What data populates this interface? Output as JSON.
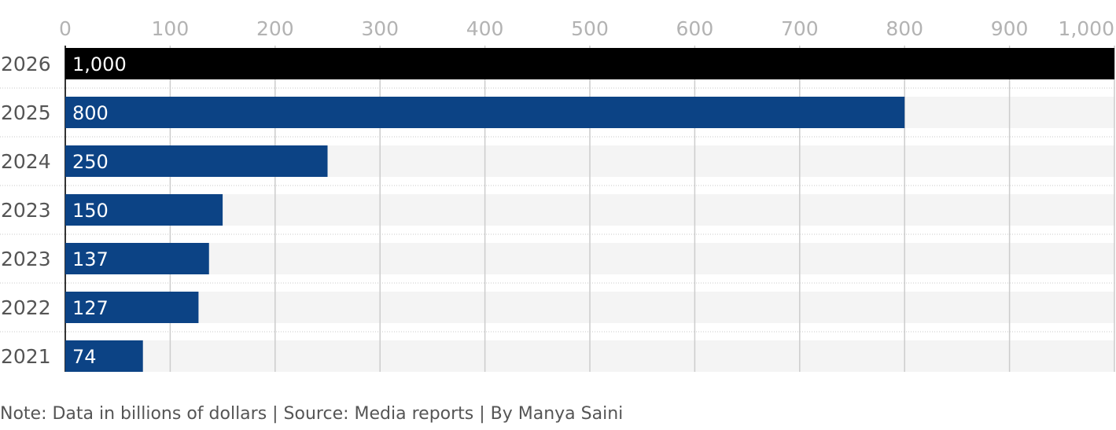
{
  "chart_data": {
    "type": "bar",
    "orientation": "horizontal",
    "categories": [
      "2026",
      "2025",
      "2024",
      "2023",
      "2023",
      "2022",
      "2021"
    ],
    "values": [
      1000,
      800,
      250,
      150,
      137,
      127,
      74
    ],
    "value_labels": [
      "1,000",
      "800",
      "250",
      "150",
      "137",
      "127",
      "74"
    ],
    "bar_colors": [
      "#000000",
      "#0c4385",
      "#0c4385",
      "#0c4385",
      "#0c4385",
      "#0c4385",
      "#0c4385"
    ],
    "xlim": [
      0,
      1000
    ],
    "x_ticks": [
      0,
      100,
      200,
      300,
      400,
      500,
      600,
      700,
      800,
      900,
      1000
    ],
    "x_tick_labels": [
      "0",
      "100",
      "200",
      "300",
      "400",
      "500",
      "600",
      "700",
      "800",
      "900",
      "1,000"
    ],
    "x_axis_position": "top",
    "grid": true,
    "track_color": "#f4f4f4",
    "grid_color": "#cccccc"
  },
  "footer": {
    "note": "Note: Data in billions of dollars | Source: Media reports | By Manya Saini"
  }
}
